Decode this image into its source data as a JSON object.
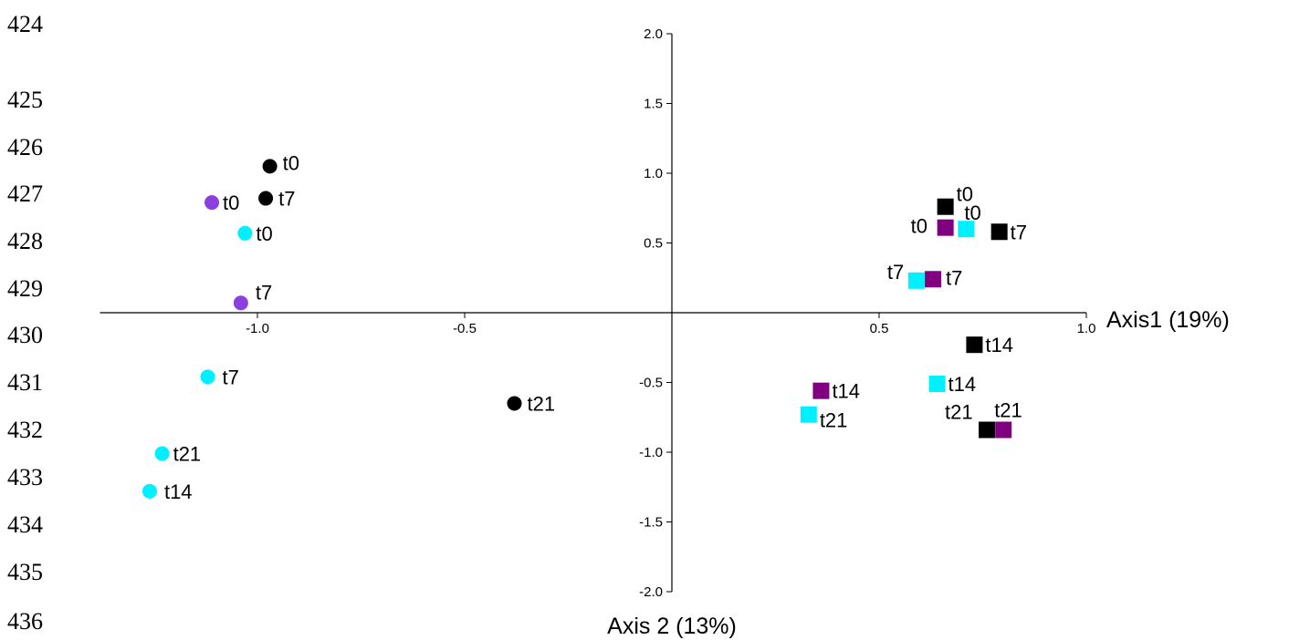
{
  "line_numbers": [
    "424",
    "425",
    "426",
    "427",
    "428",
    "429",
    "430",
    "431",
    "432",
    "433",
    "434",
    "435",
    "436"
  ],
  "chart_data": {
    "type": "scatter",
    "xlabel": "Axis1 (19%)",
    "ylabel": "Axis 2 (13%)",
    "xlim": [
      -1.38,
      1.0
    ],
    "ylim": [
      -2.0,
      2.0
    ],
    "x_ticks": [
      -1.0,
      -0.5,
      0.5,
      1.0
    ],
    "x_tick_labels": [
      "-1.0",
      "-0.5",
      "0.5",
      "1.0"
    ],
    "y_ticks": [
      2.0,
      1.5,
      1.0,
      0.5,
      -0.5,
      -1.0,
      -1.5,
      -2.0
    ],
    "y_tick_labels": [
      "2.0",
      "1.5",
      "1.0",
      "0.5",
      "-0.5",
      "-1.0",
      "-1.5",
      "-2.0"
    ],
    "colors": {
      "black": "#000000",
      "purple": "#8b3fe0",
      "cyan": "#00f0ff",
      "dark_purple": "#800080"
    },
    "series": [
      {
        "marker": "circle",
        "color": "#000000",
        "points": [
          {
            "x": -0.97,
            "y": 1.05,
            "label": "t0"
          },
          {
            "x": -0.98,
            "y": 0.82,
            "label": "t7"
          },
          {
            "x": -0.38,
            "y": -0.65,
            "label": "t21"
          }
        ]
      },
      {
        "marker": "circle",
        "color": "#8b3fe0",
        "points": [
          {
            "x": -1.11,
            "y": 0.79,
            "label": "t0"
          },
          {
            "x": -1.04,
            "y": 0.07,
            "label": "t7"
          }
        ]
      },
      {
        "marker": "circle",
        "color": "#00f0ff",
        "points": [
          {
            "x": -1.03,
            "y": 0.57,
            "label": "t0"
          },
          {
            "x": -1.12,
            "y": -0.46,
            "label": "t7"
          },
          {
            "x": -1.23,
            "y": -1.01,
            "label": "t21"
          },
          {
            "x": -1.26,
            "y": -1.28,
            "label": "t14"
          }
        ]
      },
      {
        "marker": "square",
        "color": "#000000",
        "points": [
          {
            "x": 0.66,
            "y": 0.76,
            "label": "t0"
          },
          {
            "x": 0.79,
            "y": 0.58,
            "label": "t7"
          },
          {
            "x": 0.73,
            "y": -0.23,
            "label": "t14"
          },
          {
            "x": 0.76,
            "y": -0.84,
            "label": "t21"
          }
        ]
      },
      {
        "marker": "square",
        "color": "#800080",
        "points": [
          {
            "x": 0.66,
            "y": 0.61,
            "label": "t0"
          },
          {
            "x": 0.63,
            "y": 0.24,
            "label": "t7"
          },
          {
            "x": 0.36,
            "y": -0.56,
            "label": "t14"
          },
          {
            "x": 0.8,
            "y": -0.84,
            "label": "t21"
          }
        ]
      },
      {
        "marker": "square",
        "color": "#00f0ff",
        "points": [
          {
            "x": 0.71,
            "y": 0.6,
            "label": "t0"
          },
          {
            "x": 0.59,
            "y": 0.23,
            "label": "t7"
          },
          {
            "x": 0.64,
            "y": -0.51,
            "label": "t14"
          },
          {
            "x": 0.33,
            "y": -0.73,
            "label": "t21"
          }
        ]
      }
    ]
  }
}
